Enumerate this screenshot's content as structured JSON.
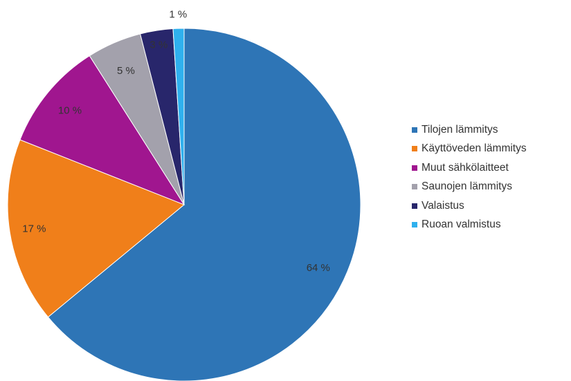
{
  "chart_data": {
    "type": "pie",
    "slices": [
      {
        "label": "Tilojen lämmitys",
        "value": 64,
        "value_label": "64 %",
        "color": "#2e75b6"
      },
      {
        "label": "Käyttöveden lämmitys",
        "value": 17,
        "value_label": "17 %",
        "color": "#f07f1a"
      },
      {
        "label": "Muut sähkölaitteet",
        "value": 10,
        "value_label": "10 %",
        "color": "#a0168f"
      },
      {
        "label": "Saunojen lämmitys",
        "value": 5,
        "value_label": "5 %",
        "color": "#a3a1ac"
      },
      {
        "label": "Valaistus",
        "value": 3,
        "value_label": "3 %",
        "color": "#28266b"
      },
      {
        "label": "Ruoan valmistus",
        "value": 1,
        "value_label": "1 %",
        "color": "#2fb0ee"
      }
    ],
    "legend_position": "right",
    "title": ""
  }
}
